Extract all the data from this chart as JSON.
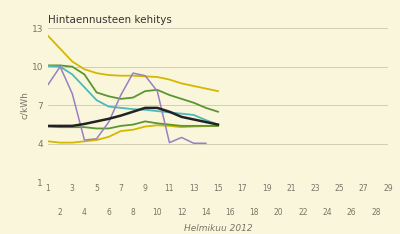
{
  "title": "Hintaennusteen kehitys",
  "xlabel": "Helmikuu 2012",
  "ylabel": "c/kWh",
  "bg_color": "#faf6dc",
  "grid_color": "#c8c8b0",
  "ylim": [
    1,
    13
  ],
  "yticks": [
    1,
    4,
    7,
    10,
    13
  ],
  "xlim": [
    1,
    29
  ],
  "xticks_odd": [
    1,
    3,
    5,
    7,
    9,
    11,
    13,
    15,
    17,
    19,
    21,
    23,
    25,
    27,
    29
  ],
  "xticks_even": [
    2,
    4,
    6,
    8,
    10,
    12,
    14,
    16,
    18,
    20,
    22,
    24,
    26,
    28
  ],
  "lines": {
    "yellow_high": {
      "color": "#d4b800",
      "lw": 1.3,
      "x": [
        1,
        2,
        3,
        4,
        5,
        6,
        7,
        8,
        9,
        10,
        11,
        12,
        13,
        14,
        15
      ],
      "y": [
        12.4,
        11.4,
        10.4,
        9.8,
        9.5,
        9.35,
        9.3,
        9.3,
        9.25,
        9.2,
        9.0,
        8.7,
        8.5,
        8.3,
        8.1
      ]
    },
    "yellow_low": {
      "color": "#d4b800",
      "lw": 1.3,
      "x": [
        1,
        2,
        3,
        4,
        5,
        6,
        7,
        8,
        9,
        10,
        11,
        12,
        13,
        14,
        15
      ],
      "y": [
        4.2,
        4.1,
        4.1,
        4.2,
        4.3,
        4.55,
        5.0,
        5.1,
        5.35,
        5.45,
        5.4,
        5.3,
        5.35,
        5.38,
        5.4
      ]
    },
    "green_high": {
      "color": "#5a9632",
      "lw": 1.3,
      "x": [
        1,
        2,
        3,
        4,
        5,
        6,
        7,
        8,
        9,
        10,
        11,
        12,
        13,
        14,
        15
      ],
      "y": [
        10.1,
        10.1,
        10.0,
        9.4,
        8.0,
        7.7,
        7.5,
        7.6,
        8.1,
        8.2,
        7.8,
        7.5,
        7.2,
        6.8,
        6.5
      ]
    },
    "green_low": {
      "color": "#5a9632",
      "lw": 1.3,
      "x": [
        1,
        2,
        3,
        4,
        5,
        6,
        7,
        8,
        9,
        10,
        11,
        12,
        13,
        14,
        15
      ],
      "y": [
        5.35,
        5.3,
        5.3,
        5.3,
        5.2,
        5.2,
        5.4,
        5.5,
        5.75,
        5.6,
        5.5,
        5.4,
        5.4,
        5.4,
        5.4
      ]
    },
    "cyan": {
      "color": "#50b8b8",
      "lw": 1.3,
      "x": [
        1,
        2,
        3,
        4,
        5,
        6,
        7,
        8,
        9,
        10,
        11,
        12,
        13,
        14,
        15
      ],
      "y": [
        10.05,
        10.0,
        9.4,
        8.4,
        7.4,
        6.9,
        6.8,
        6.7,
        6.65,
        6.55,
        6.45,
        6.35,
        6.25,
        5.85,
        5.5
      ]
    },
    "purple": {
      "color": "#9880c0",
      "lw": 1.1,
      "x": [
        1,
        2,
        3,
        4,
        5,
        6,
        7,
        8,
        9,
        10,
        11,
        12,
        13,
        14
      ],
      "y": [
        8.6,
        10.0,
        7.9,
        4.3,
        4.4,
        5.7,
        7.8,
        9.5,
        9.3,
        8.1,
        4.1,
        4.5,
        4.05,
        4.05
      ]
    },
    "black": {
      "color": "#222222",
      "lw": 1.8,
      "x": [
        1,
        2,
        3,
        4,
        5,
        6,
        7,
        8,
        9,
        10,
        11,
        12,
        13,
        14,
        15
      ],
      "y": [
        5.4,
        5.4,
        5.4,
        5.55,
        5.75,
        5.95,
        6.2,
        6.5,
        6.8,
        6.8,
        6.5,
        6.1,
        5.9,
        5.7,
        5.5
      ]
    }
  }
}
